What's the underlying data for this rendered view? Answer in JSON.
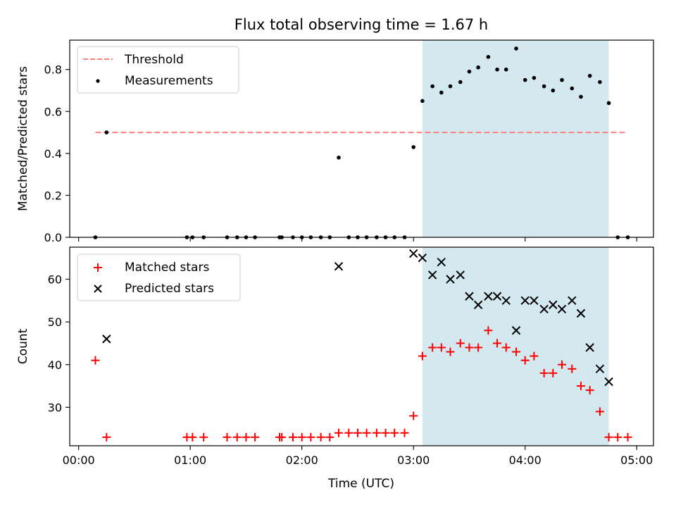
{
  "chart_data": {
    "type": "scatter",
    "title": "Flux total observing time = 1.67 h",
    "xlabel": "Time (UTC)",
    "x_unit": "hours UTC",
    "x_ticks": [
      {
        "value": 0,
        "label": "00:00"
      },
      {
        "value": 1,
        "label": "01:00"
      },
      {
        "value": 2,
        "label": "02:00"
      },
      {
        "value": 3,
        "label": "03:00"
      },
      {
        "value": 4,
        "label": "04:00"
      },
      {
        "value": 5,
        "label": "05:00"
      }
    ],
    "xlim": [
      -0.08,
      5.15
    ],
    "shaded_span": {
      "x": [
        3.08,
        4.75
      ],
      "color": "#d3e9ef"
    },
    "x": [
      0.15,
      0.25,
      0.97,
      1.02,
      1.12,
      1.33,
      1.42,
      1.5,
      1.58,
      1.8,
      1.82,
      1.92,
      2.0,
      2.08,
      2.17,
      2.25,
      2.33,
      2.42,
      2.5,
      2.58,
      2.67,
      2.75,
      2.83,
      2.92,
      3.0,
      3.08,
      3.17,
      3.25,
      3.33,
      3.42,
      3.5,
      3.58,
      3.67,
      3.75,
      3.83,
      3.92,
      4.0,
      4.08,
      4.17,
      4.25,
      4.33,
      4.42,
      4.5,
      4.58,
      4.67,
      4.75,
      4.83,
      4.92
    ],
    "panels": [
      {
        "ylabel": "Matched/Predicted stars",
        "ylim": [
          0,
          0.94
        ],
        "y_ticks": [
          {
            "value": 0,
            "label": "0.0"
          },
          {
            "value": 0.2,
            "label": "0.2"
          },
          {
            "value": 0.4,
            "label": "0.4"
          },
          {
            "value": 0.6,
            "label": "0.6"
          },
          {
            "value": 0.8,
            "label": "0.8"
          }
        ],
        "legend": {
          "position": "upper left",
          "entries": [
            "Threshold",
            "Measurements"
          ]
        },
        "threshold": {
          "name": "Threshold",
          "value": 0.5,
          "x_range": [
            0.15,
            4.92
          ],
          "color": "#ff7f7f",
          "style": "dashed"
        },
        "series": [
          {
            "name": "Measurements",
            "marker": "dot",
            "color": "#000000",
            "values": [
              0.0,
              0.5,
              0.0,
              0.0,
              0.0,
              0.0,
              0.0,
              0.0,
              0.0,
              0.0,
              0.0,
              0.0,
              0.0,
              0.0,
              0.0,
              0.0,
              0.38,
              0.0,
              0.0,
              0.0,
              0.0,
              0.0,
              0.0,
              0.0,
              0.43,
              0.65,
              0.72,
              0.69,
              0.72,
              0.74,
              0.79,
              0.81,
              0.86,
              0.8,
              0.8,
              0.9,
              0.75,
              0.76,
              0.72,
              0.7,
              0.75,
              0.71,
              0.67,
              0.77,
              0.74,
              0.64,
              0.0,
              0.0
            ]
          }
        ]
      },
      {
        "ylabel": "Count",
        "ylim": [
          21,
          67.5
        ],
        "y_ticks": [
          {
            "value": 30,
            "label": "30"
          },
          {
            "value": 40,
            "label": "40"
          },
          {
            "value": 50,
            "label": "50"
          },
          {
            "value": 60,
            "label": "60"
          }
        ],
        "legend": {
          "position": "upper left",
          "entries": [
            "Matched stars",
            "Predicted stars"
          ]
        },
        "series": [
          {
            "name": "Matched stars",
            "marker": "plus",
            "color": "#ff0000",
            "values": [
              41,
              23,
              23,
              23,
              23,
              23,
              23,
              23,
              23,
              23,
              23,
              23,
              23,
              23,
              23,
              23,
              24,
              24,
              24,
              24,
              24,
              24,
              24,
              24,
              28,
              42,
              44,
              44,
              43,
              45,
              44,
              44,
              48,
              45,
              44,
              43,
              41,
              42,
              38,
              38,
              40,
              39,
              35,
              34,
              29,
              23,
              23,
              23
            ]
          },
          {
            "name": "Predicted stars",
            "marker": "x",
            "color": "#000000",
            "x": [
              0.25,
              2.33,
              3.0,
              3.08,
              3.17,
              3.25,
              3.33,
              3.42,
              3.5,
              3.58,
              3.67,
              3.75,
              3.83,
              3.92,
              4.0,
              4.08,
              4.17,
              4.25,
              4.33,
              4.42,
              4.5,
              4.58,
              4.67,
              4.75
            ],
            "values": [
              46,
              63,
              66,
              65,
              61,
              64,
              60,
              61,
              56,
              54,
              56,
              56,
              55,
              48,
              55,
              55,
              53,
              54,
              53,
              55,
              52,
              44,
              39,
              36
            ]
          }
        ]
      }
    ]
  }
}
